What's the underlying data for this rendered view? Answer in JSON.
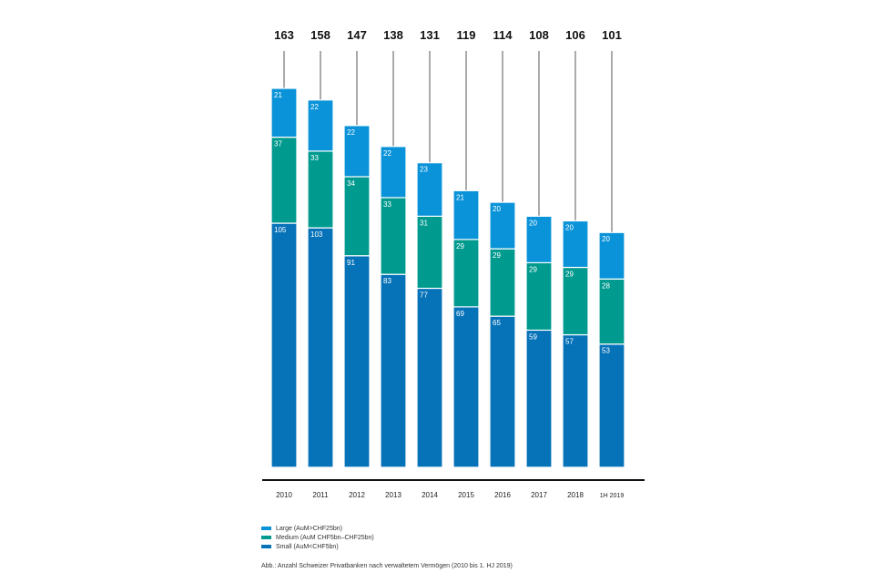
{
  "chart_data": {
    "type": "bar",
    "stacked": true,
    "categories": [
      "2010",
      "2011",
      "2012",
      "2013",
      "2014",
      "2015",
      "2016",
      "2017",
      "2018",
      "1H 2019"
    ],
    "series": [
      {
        "name": "Small (AuM<CHF5bn)",
        "color": "#0672b8",
        "values": [
          105,
          103,
          91,
          83,
          77,
          69,
          65,
          59,
          57,
          53
        ]
      },
      {
        "name": "Medium (AuM CHF5bn–CHF25bn)",
        "color": "#009a8e",
        "values": [
          37,
          33,
          34,
          33,
          31,
          29,
          29,
          29,
          29,
          28
        ]
      },
      {
        "name": "Large (AuM>CHF25bn)",
        "color": "#0a93d9",
        "values": [
          21,
          22,
          22,
          22,
          23,
          21,
          20,
          20,
          20,
          20
        ]
      }
    ],
    "totals": [
      163,
      158,
      147,
      138,
      131,
      119,
      114,
      108,
      106,
      101
    ],
    "legend_order": [
      "Large (AuM>CHF25bn)",
      "Medium (AuM CHF5bn–CHF25bn)",
      "Small (AuM<CHF5bn)"
    ],
    "legend_position": "bottom-left",
    "grid": false,
    "caption": "Abb.: Anzahl Schweizer Privatbanken nach verwaltetem Vermögen (2010 bis 1. HJ 2019)"
  }
}
